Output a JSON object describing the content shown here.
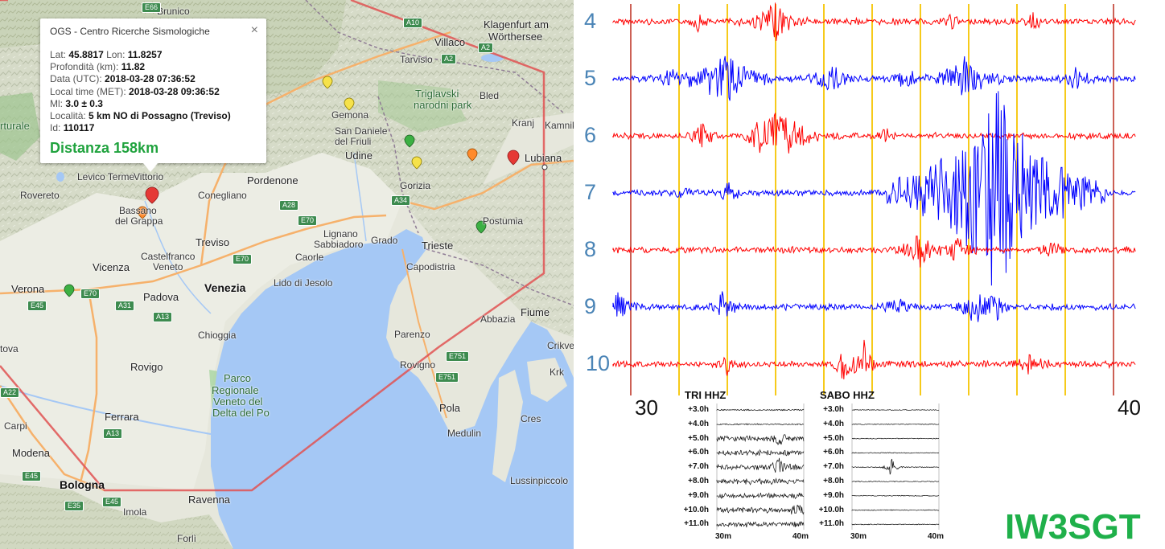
{
  "map": {
    "places": [
      {
        "name": "Brunico",
        "cls": ""
      },
      {
        "name": "Villaco",
        "cls": "big"
      },
      {
        "name": "Klagenfurt am",
        "cls": "big"
      },
      {
        "name": "Wörthersee",
        "cls": "big"
      },
      {
        "name": "Tarvisio",
        "cls": ""
      },
      {
        "name": "Bled",
        "cls": ""
      },
      {
        "name": "Triglavski",
        "cls": "park"
      },
      {
        "name": "narodni park",
        "cls": "park"
      },
      {
        "name": "Kranj",
        "cls": ""
      },
      {
        "name": "Kamnik",
        "cls": ""
      },
      {
        "name": "Gemona",
        "cls": ""
      },
      {
        "name": "San Daniele",
        "cls": ""
      },
      {
        "name": "del Friuli",
        "cls": ""
      },
      {
        "name": "Udine",
        "cls": "big"
      },
      {
        "name": "Lubiana",
        "cls": "big"
      },
      {
        "name": "Levico Terme",
        "cls": ""
      },
      {
        "name": "Rovereto",
        "cls": ""
      },
      {
        "name": "Pordenone",
        "cls": "big"
      },
      {
        "name": "Conegliano",
        "cls": ""
      },
      {
        "name": "Gorizia",
        "cls": ""
      },
      {
        "name": "Bassano",
        "cls": ""
      },
      {
        "name": "del Grappa",
        "cls": ""
      },
      {
        "name": "Postumia",
        "cls": ""
      },
      {
        "name": "Lignano",
        "cls": ""
      },
      {
        "name": "Sabbiadoro",
        "cls": ""
      },
      {
        "name": "Grado",
        "cls": ""
      },
      {
        "name": "Trieste",
        "cls": "big"
      },
      {
        "name": "Treviso",
        "cls": "big"
      },
      {
        "name": "Castelfranco",
        "cls": ""
      },
      {
        "name": "Veneto",
        "cls": ""
      },
      {
        "name": "Caorle",
        "cls": ""
      },
      {
        "name": "Capodistria",
        "cls": ""
      },
      {
        "name": "Vicenza",
        "cls": "big"
      },
      {
        "name": "Venezia",
        "cls": "city"
      },
      {
        "name": "Lido di Jesolo",
        "cls": ""
      },
      {
        "name": "Verona",
        "cls": "big"
      },
      {
        "name": "Padova",
        "cls": "big"
      },
      {
        "name": "Fiume",
        "cls": "big"
      },
      {
        "name": "Abbazia",
        "cls": ""
      },
      {
        "name": "Chioggia",
        "cls": ""
      },
      {
        "name": "Parenzo",
        "cls": ""
      },
      {
        "name": "Crikvenica",
        "cls": ""
      },
      {
        "name": "Rovigo",
        "cls": "big"
      },
      {
        "name": "Rovigno",
        "cls": ""
      },
      {
        "name": "Krk",
        "cls": ""
      },
      {
        "name": "Parco",
        "cls": "park"
      },
      {
        "name": "Regionale",
        "cls": "park"
      },
      {
        "name": "Veneto del",
        "cls": "park"
      },
      {
        "name": "Delta del Po",
        "cls": "park"
      },
      {
        "name": "Ferrara",
        "cls": "big"
      },
      {
        "name": "Pola",
        "cls": "big"
      },
      {
        "name": "Cres",
        "cls": ""
      },
      {
        "name": "Carpi",
        "cls": ""
      },
      {
        "name": "Modena",
        "cls": "big"
      },
      {
        "name": "Medulin",
        "cls": ""
      },
      {
        "name": "Bologna",
        "cls": "city"
      },
      {
        "name": "Lussinpiccolo",
        "cls": ""
      },
      {
        "name": "Ravenna",
        "cls": "big"
      },
      {
        "name": "Imola",
        "cls": ""
      },
      {
        "name": "Forlì",
        "cls": ""
      },
      {
        "name": "Vittorio",
        "cls": ""
      },
      {
        "name": "rturale",
        "cls": "park"
      },
      {
        "name": "tova",
        "cls": ""
      }
    ],
    "roads": [
      "E66",
      "A10",
      "A2",
      "A2",
      "A28",
      "E70",
      "A34",
      "E70",
      "E70",
      "A31",
      "A13",
      "E45",
      "A22",
      "E751",
      "E751",
      "A13",
      "E45",
      "E35",
      "E45"
    ]
  },
  "popup": {
    "title": "OGS - Centro Ricerche Sismologiche",
    "close": "×",
    "rows": [
      {
        "label": "Lat: ",
        "value": "45.8817",
        "label2": " Lon: ",
        "value2": "11.8257"
      },
      {
        "label": "Profondità (km): ",
        "value": "11.82"
      },
      {
        "label": "Data (UTC): ",
        "value": "2018-03-28 07:36:52"
      },
      {
        "label": "Local time (MET): ",
        "value": "2018-03-28 09:36:52"
      },
      {
        "label": "Ml: ",
        "value": "3.0 ± 0.3"
      },
      {
        "label": "Località: ",
        "value": "5 km NO di Possagno (Treviso)"
      },
      {
        "label": "Id: ",
        "value": "110117"
      }
    ],
    "distance": "Distanza 158km"
  },
  "seismogram": {
    "hours": [
      "4",
      "5",
      "6",
      "7",
      "8",
      "9",
      "10"
    ],
    "x_start": "30",
    "x_end": "40",
    "colors": {
      "odd": "#ff0000",
      "even": "#0000ff",
      "minor": "#f5c400",
      "major": "#c0392b"
    }
  },
  "insets": [
    {
      "title": "TRI HHZ",
      "rows": [
        "+3.0h",
        "+4.0h",
        "+5.0h",
        "+6.0h",
        "+7.0h",
        "+8.0h",
        "+9.0h",
        "+10.0h",
        "+11.0h"
      ],
      "xmin": "30m",
      "xmax": "40m"
    },
    {
      "title": "SABO HHZ",
      "rows": [
        "+3.0h",
        "+4.0h",
        "+5.0h",
        "+6.0h",
        "+7.0h",
        "+8.0h",
        "+9.0h",
        "+10.0h",
        "+11.0h"
      ],
      "xmin": "30m",
      "xmax": "40m"
    }
  ],
  "signature": "IW3SGT"
}
